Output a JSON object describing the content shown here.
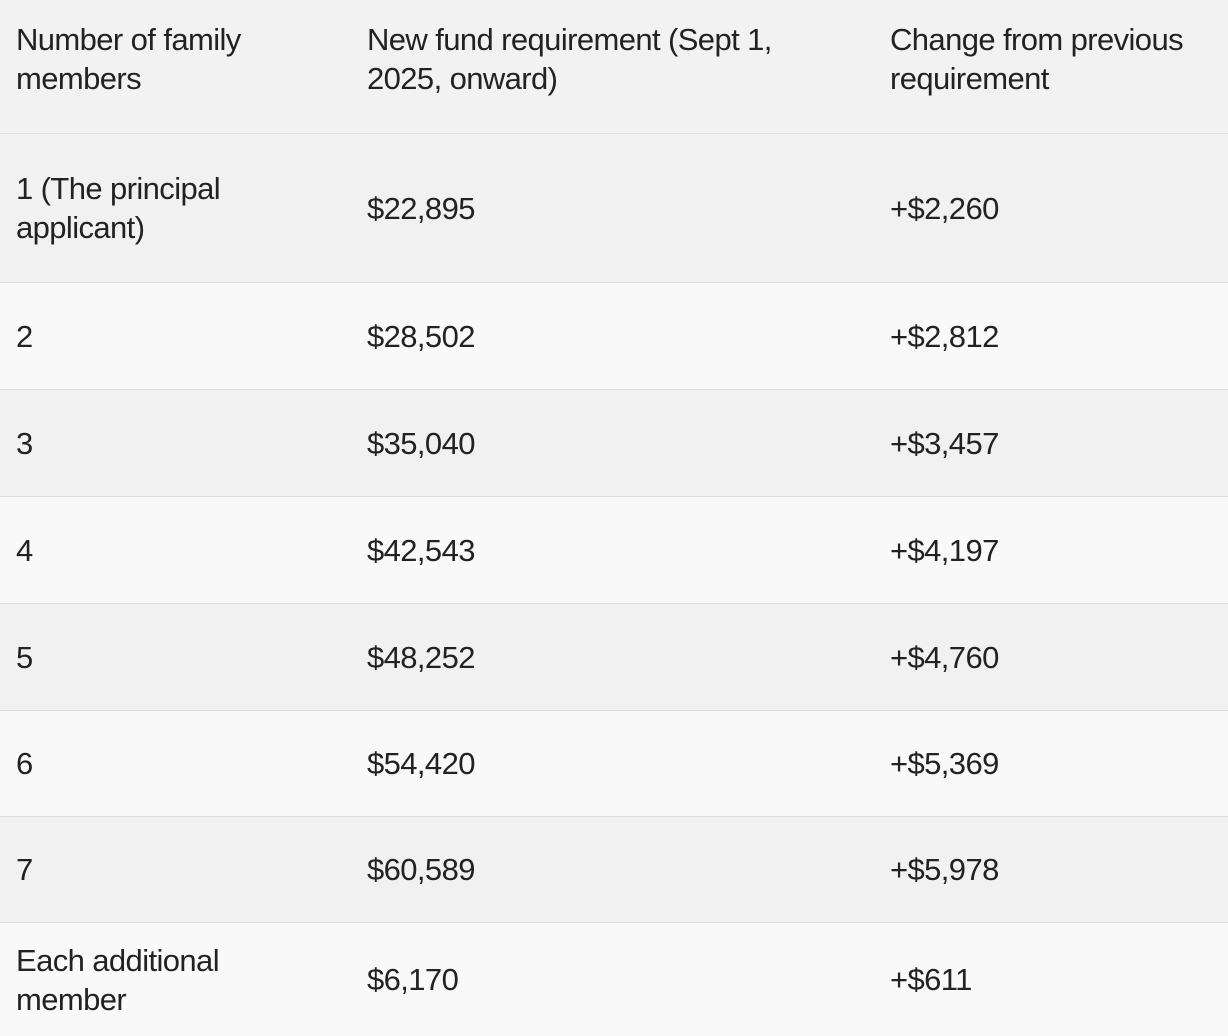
{
  "table": {
    "headers": [
      "Number of family members",
      "New fund requirement (Sept 1, 2025, onward)",
      "Change from previous requirement"
    ],
    "rows": [
      {
        "members": "1  (The principal applicant)",
        "requirement": "$22,895",
        "change": "+$2,260"
      },
      {
        "members": "2",
        "requirement": "$28,502",
        "change": "+$2,812"
      },
      {
        "members": "3",
        "requirement": "$35,040",
        "change": "+$3,457"
      },
      {
        "members": "4",
        "requirement": "$42,543",
        "change": "+$4,197"
      },
      {
        "members": "5",
        "requirement": "$48,252",
        "change": "+$4,760"
      },
      {
        "members": "6",
        "requirement": "$54,420",
        "change": "+$5,369"
      },
      {
        "members": "7",
        "requirement": "$60,589",
        "change": "+$5,978"
      },
      {
        "members": "Each additional member",
        "requirement": "$6,170",
        "change": "+$611"
      }
    ]
  }
}
